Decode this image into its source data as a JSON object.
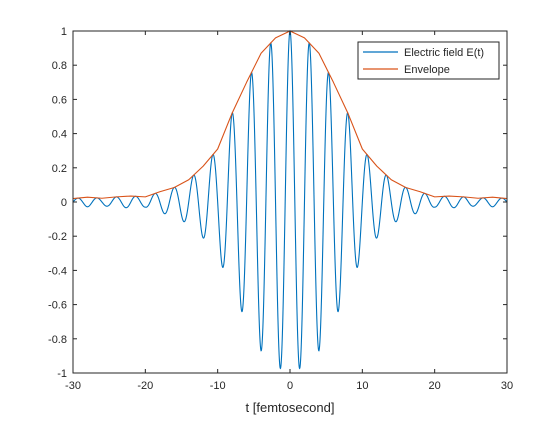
{
  "chart_data": {
    "type": "line",
    "title": "",
    "xlabel": "t [femtosecond]",
    "ylabel": "",
    "xlim": [
      -30,
      30
    ],
    "ylim": [
      -1,
      1
    ],
    "xticks": [
      -30,
      -20,
      -10,
      0,
      10,
      20,
      30
    ],
    "yticks": [
      -1,
      -0.8,
      -0.6,
      -0.4,
      -0.2,
      0,
      0.2,
      0.4,
      0.6,
      0.8,
      1
    ],
    "xtick_labels": [
      "-30",
      "-20",
      "-10",
      "0",
      "10",
      "20",
      "30"
    ],
    "ytick_labels": [
      "-1",
      "-0.8",
      "-0.6",
      "-0.4",
      "-0.2",
      "0",
      "0.2",
      "0.4",
      "0.6",
      "0.8",
      "1"
    ],
    "grid": false,
    "legend_position": "top-right",
    "series": [
      {
        "name": "Electric field E(t)",
        "color": "#0072BD",
        "model": {
          "kind": "sampled_function",
          "expression": "E(t) = env(t) * cos(omega*t)",
          "omega": 2.356,
          "samples": 2401
        }
      },
      {
        "name": "Envelope",
        "color": "#D95319",
        "t": [
          -30,
          -28,
          -26,
          -24,
          -22,
          -20,
          -18,
          -16,
          -14,
          -12,
          -10,
          -8,
          -6,
          -4,
          -2,
          0,
          2,
          4,
          6,
          8,
          10,
          12,
          14,
          16,
          18,
          20,
          22,
          24,
          26,
          28,
          30
        ],
        "values": [
          0.02,
          0.028,
          0.022,
          0.03,
          0.035,
          0.03,
          0.06,
          0.085,
          0.13,
          0.21,
          0.31,
          0.52,
          0.7,
          0.87,
          0.96,
          1.0,
          0.96,
          0.87,
          0.7,
          0.52,
          0.31,
          0.21,
          0.13,
          0.085,
          0.06,
          0.03,
          0.035,
          0.03,
          0.022,
          0.028,
          0.02
        ]
      }
    ]
  }
}
